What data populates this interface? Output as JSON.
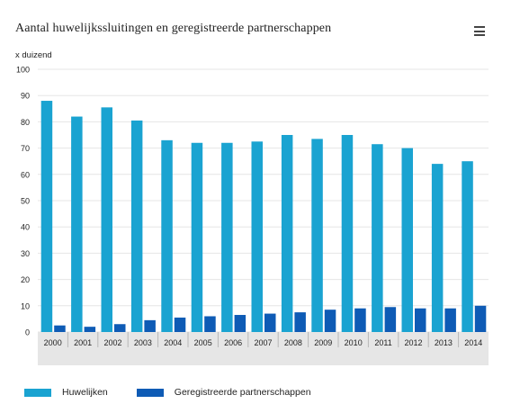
{
  "title": "Aantal huwelijkssluitingen en geregistreerde partnerschappen",
  "menu_icon": "hamburger-menu-icon",
  "colors": {
    "huwelijken": "#1aa3d1",
    "partnerschappen": "#0e5bb5",
    "grid": "#e6e6e6",
    "axis_band": "#e6e6e6"
  },
  "chart_data": {
    "type": "bar",
    "ylabel": "x duizend",
    "ylim": [
      0,
      100
    ],
    "yticks": [
      "0",
      "10",
      "20",
      "30",
      "40",
      "50",
      "60",
      "70",
      "80",
      "90",
      "100"
    ],
    "categories": [
      "2000",
      "2001",
      "2002",
      "2003",
      "2004",
      "2005",
      "2006",
      "2007",
      "2008",
      "2009",
      "2010",
      "2011",
      "2012",
      "2013",
      "2014"
    ],
    "series": [
      {
        "name": "Huwelijken",
        "values": [
          88,
          82,
          85.5,
          80.5,
          73,
          72,
          72,
          72.5,
          75,
          73.5,
          75,
          71.5,
          70,
          64,
          65
        ]
      },
      {
        "name": "Geregistreerde partnerschappen",
        "values": [
          2.5,
          2,
          3,
          4.5,
          5.5,
          6,
          6.5,
          7,
          7.5,
          8.5,
          9,
          9.5,
          9,
          9,
          10
        ]
      }
    ],
    "grid": true,
    "legend_position": "bottom-left"
  }
}
